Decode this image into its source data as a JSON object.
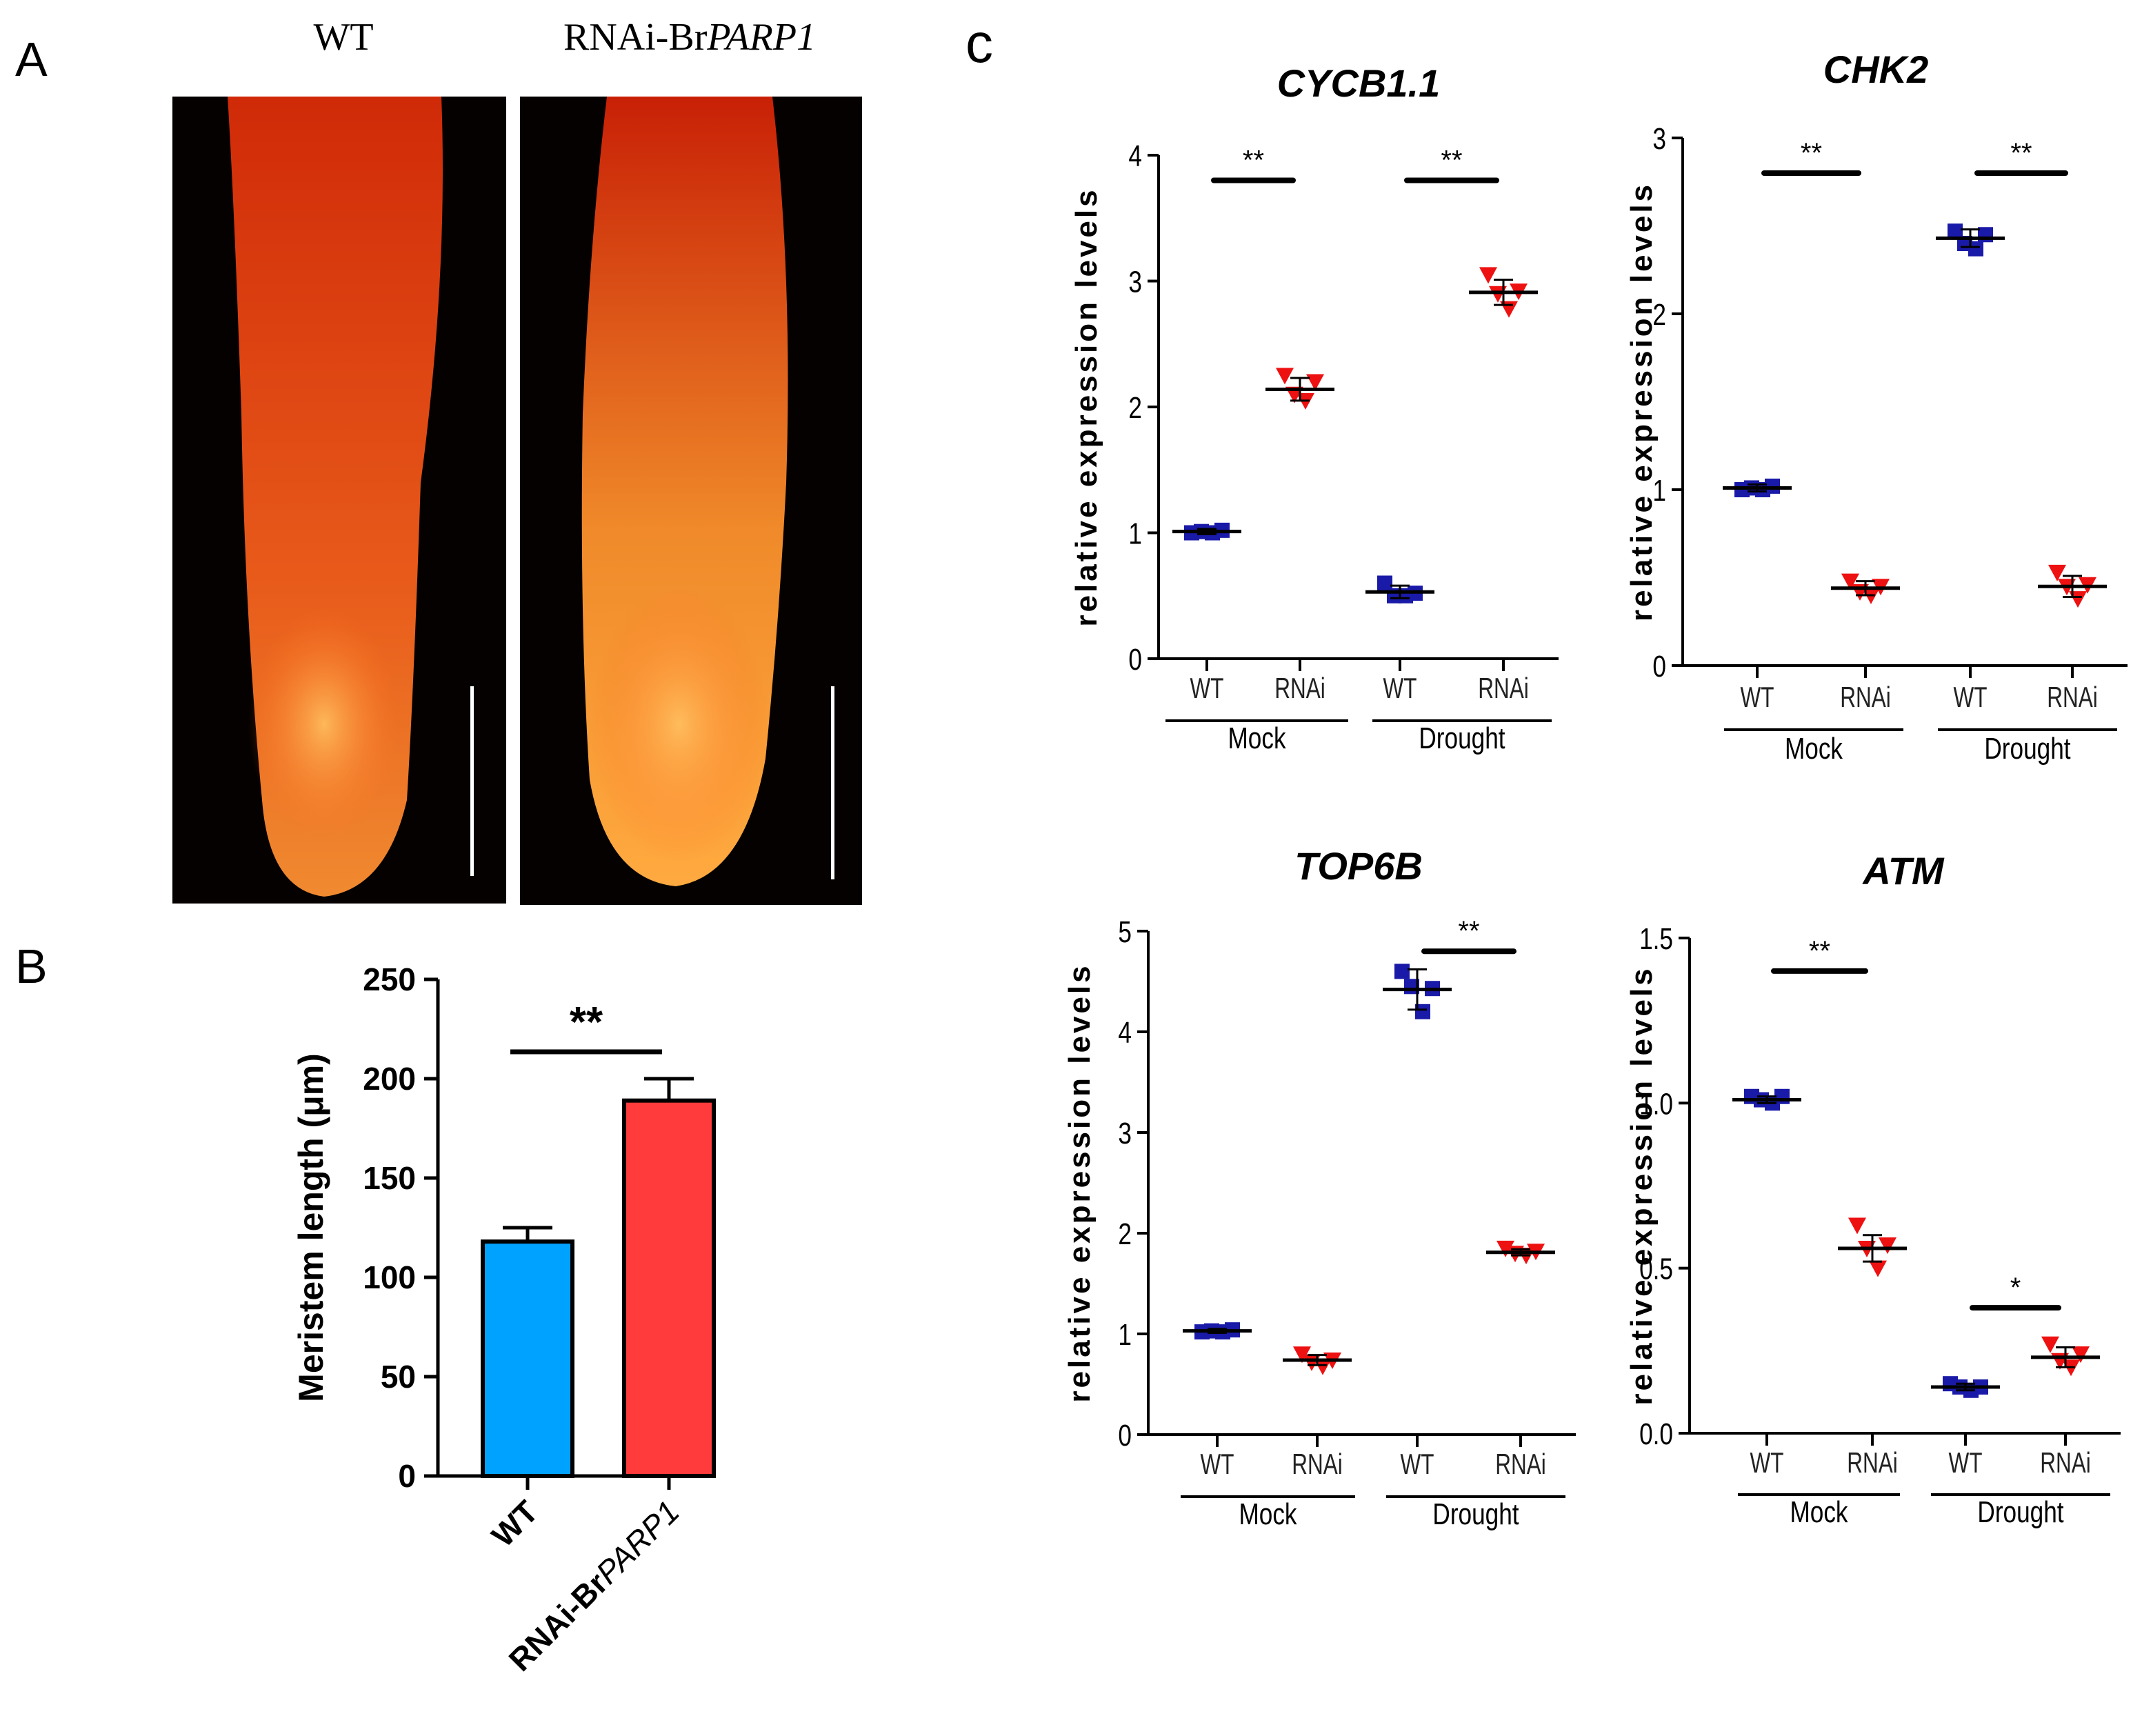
{
  "panels": {
    "a": {
      "letter": "A",
      "image_labels": [
        "WT",
        "RNAi-Br",
        "PARP1"
      ]
    },
    "b": {
      "letter": "B"
    },
    "c": {
      "letter": "c"
    }
  },
  "colors": {
    "wt_bar": "#00a2ff",
    "rnai_bar": "#ff3b3b",
    "wt_points": "#1a1aa8",
    "rnai_points": "#ee1111",
    "root_dark": "#a01000",
    "root_bright": "#ffae40"
  },
  "chart_data": [
    {
      "id": "meristem",
      "type": "bar",
      "title": "",
      "ylabel": "Meristem length (μm)",
      "ylim": [
        0,
        250
      ],
      "yticks": [
        0,
        50,
        100,
        150,
        200,
        250
      ],
      "categories": [
        "WT",
        "RNAi-BrPARP1"
      ],
      "category_parts": [
        [
          "WT",
          ""
        ],
        [
          "RNAi-Br",
          "PARP1"
        ]
      ],
      "values": [
        118,
        189
      ],
      "errors": [
        7,
        11
      ],
      "significance": [
        {
          "between": [
            0,
            1
          ],
          "label": "**"
        }
      ]
    },
    {
      "id": "CYCB1.1",
      "type": "scatter",
      "title": "CYCB1.1",
      "ylabel": "relative expression levels",
      "ylim": [
        0,
        4
      ],
      "yticks": [
        "0",
        "1",
        "2",
        "3",
        "4"
      ],
      "groups": [
        "Mock",
        "Drought"
      ],
      "genotypes": [
        "WT",
        "RNAi",
        "WT",
        "RNAi"
      ],
      "series": [
        {
          "name": "WT",
          "group": "Mock",
          "points": [
            1.0,
            1.01,
            1.0,
            1.02
          ],
          "mean": 1.01,
          "sd": 0.02
        },
        {
          "name": "RNAi",
          "group": "Mock",
          "points": [
            2.25,
            2.1,
            2.05,
            2.2
          ],
          "mean": 2.14,
          "sd": 0.09
        },
        {
          "name": "WT",
          "group": "Drought",
          "points": [
            0.6,
            0.5,
            0.5,
            0.52
          ],
          "mean": 0.53,
          "sd": 0.05
        },
        {
          "name": "RNAi",
          "group": "Drought",
          "points": [
            3.05,
            2.9,
            2.78,
            2.92
          ],
          "mean": 2.91,
          "sd": 0.1
        }
      ],
      "significance": [
        {
          "between": [
            0,
            1
          ],
          "label": "**",
          "y": 3.8
        },
        {
          "between": [
            2,
            3
          ],
          "label": "**",
          "y": 3.8
        }
      ]
    },
    {
      "id": "CHK2",
      "type": "scatter",
      "title": "CHK2",
      "ylabel": "relative expression levels",
      "ylim": [
        0,
        3
      ],
      "yticks": [
        "0",
        "1",
        "2",
        "3"
      ],
      "groups": [
        "Mock",
        "Drought"
      ],
      "genotypes": [
        "WT",
        "RNAi",
        "WT",
        "RNAi"
      ],
      "series": [
        {
          "name": "WT",
          "group": "Mock",
          "points": [
            1.0,
            1.01,
            1.0,
            1.02
          ],
          "mean": 1.01,
          "sd": 0.02
        },
        {
          "name": "RNAi",
          "group": "Mock",
          "points": [
            0.48,
            0.42,
            0.4,
            0.45
          ],
          "mean": 0.44,
          "sd": 0.04
        },
        {
          "name": "WT",
          "group": "Drought",
          "points": [
            2.47,
            2.4,
            2.37,
            2.45
          ],
          "mean": 2.43,
          "sd": 0.05
        },
        {
          "name": "RNAi",
          "group": "Drought",
          "points": [
            0.53,
            0.45,
            0.38,
            0.46
          ],
          "mean": 0.45,
          "sd": 0.06
        }
      ],
      "significance": [
        {
          "between": [
            0,
            1
          ],
          "label": "**",
          "y": 2.8
        },
        {
          "between": [
            2,
            3
          ],
          "label": "**",
          "y": 2.8
        }
      ]
    },
    {
      "id": "TOP6B",
      "type": "scatter",
      "title": "TOP6B",
      "ylabel": "relative expression levels",
      "ylim": [
        0,
        5
      ],
      "yticks": [
        "0",
        "1",
        "2",
        "3",
        "4",
        "5"
      ],
      "groups": [
        "Mock",
        "Drought"
      ],
      "genotypes": [
        "WT",
        "RNAi",
        "WT",
        "RNAi"
      ],
      "series": [
        {
          "name": "WT",
          "group": "Mock",
          "points": [
            1.02,
            1.03,
            1.02,
            1.04
          ],
          "mean": 1.03,
          "sd": 0.02
        },
        {
          "name": "RNAi",
          "group": "Mock",
          "points": [
            0.8,
            0.72,
            0.68,
            0.74
          ],
          "mean": 0.74,
          "sd": 0.05
        },
        {
          "name": "WT",
          "group": "Drought",
          "points": [
            4.6,
            4.45,
            4.2,
            4.43
          ],
          "mean": 4.42,
          "sd": 0.2
        },
        {
          "name": "RNAi",
          "group": "Drought",
          "points": [
            1.85,
            1.8,
            1.78,
            1.82
          ],
          "mean": 1.81,
          "sd": 0.03
        }
      ],
      "significance": [
        {
          "between": [
            2,
            3
          ],
          "label": "**",
          "y": 4.8
        }
      ]
    },
    {
      "id": "ATM",
      "type": "scatter",
      "title": "ATM",
      "ylabel": "relative expression levels",
      "ylim": [
        0,
        1.5
      ],
      "yticks": [
        "0.0",
        "0.5",
        "1.0",
        "1.5"
      ],
      "groups": [
        "Mock",
        "Drought"
      ],
      "genotypes": [
        "WT",
        "RNAi",
        "WT",
        "RNAi"
      ],
      "series": [
        {
          "name": "WT",
          "group": "Mock",
          "points": [
            1.02,
            1.01,
            1.0,
            1.02
          ],
          "mean": 1.01,
          "sd": 0.01
        },
        {
          "name": "RNAi",
          "group": "Mock",
          "points": [
            0.63,
            0.56,
            0.5,
            0.57
          ],
          "mean": 0.56,
          "sd": 0.04
        },
        {
          "name": "WT",
          "group": "Drought",
          "points": [
            0.15,
            0.14,
            0.13,
            0.14
          ],
          "mean": 0.14,
          "sd": 0.01
        },
        {
          "name": "RNAi",
          "group": "Drought",
          "points": [
            0.27,
            0.22,
            0.2,
            0.24
          ],
          "mean": 0.23,
          "sd": 0.03
        }
      ],
      "significance": [
        {
          "between": [
            0,
            1
          ],
          "label": "**",
          "y": 1.4
        },
        {
          "between": [
            2,
            3
          ],
          "label": "*",
          "y": 0.38
        }
      ]
    }
  ]
}
